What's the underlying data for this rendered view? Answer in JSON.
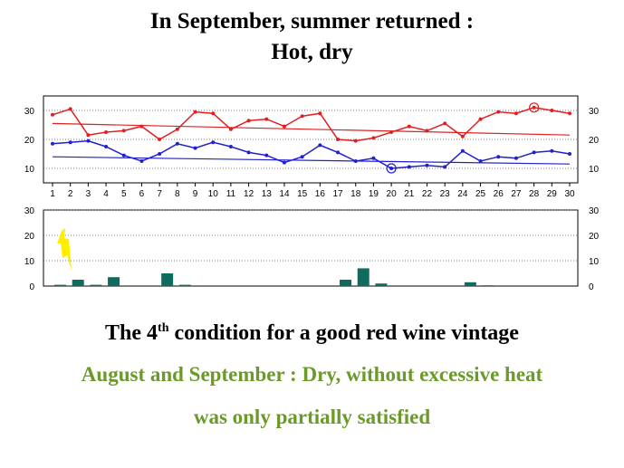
{
  "slide": {
    "title_line1": "In September, summer returned :",
    "title_line2": "Hot, dry",
    "caption_pre": "The 4",
    "caption_sup": "th",
    "caption_post": " condition for a good red wine vintage",
    "caption_line2": "August and September  : Dry, without excessive heat",
    "caption_line3": "was only partially satisfied",
    "caption_color": "#6b9a2a"
  },
  "chart_data": {
    "type": "line",
    "x": [
      1,
      2,
      3,
      4,
      5,
      6,
      7,
      8,
      9,
      10,
      11,
      12,
      13,
      14,
      15,
      16,
      17,
      18,
      19,
      20,
      21,
      22,
      23,
      24,
      25,
      26,
      27,
      28,
      29,
      30
    ],
    "temperature_panel": {
      "ylim": [
        5,
        35
      ],
      "yticks": [
        10,
        20,
        30
      ],
      "series": [
        {
          "color": "#e02020",
          "values": [
            28.5,
            30.5,
            21.5,
            22.5,
            23,
            24.5,
            20,
            23.5,
            29.5,
            29,
            23.5,
            26.5,
            27,
            24.5,
            28,
            29,
            20,
            19.5,
            20.5,
            22.5,
            24.5,
            23,
            25.5,
            21,
            27,
            29.5,
            29,
            31,
            30,
            29
          ]
        },
        {
          "color": "#2020d0",
          "values": [
            18.5,
            19,
            19.5,
            17.5,
            14.5,
            12.5,
            15,
            18.5,
            17,
            19,
            17.5,
            15.5,
            14.5,
            12,
            14,
            18,
            15.5,
            12.5,
            13.5,
            10,
            10.5,
            11,
            10.5,
            16,
            12.5,
            14,
            13.5,
            15.5,
            16,
            15
          ]
        }
      ],
      "trends": [
        {
          "color": "#e02020",
          "start": 25.5,
          "end": 21.5
        },
        {
          "color": "#2020d0",
          "start": 14,
          "end": 11.5
        }
      ],
      "highlights": [
        {
          "color": "#e02020",
          "x": 28,
          "y": 31
        },
        {
          "color": "#2020d0",
          "x": 20,
          "y": 10
        }
      ]
    },
    "rain_panel": {
      "ylim": [
        0,
        30
      ],
      "yticks": [
        0,
        10,
        20,
        30
      ],
      "bar_color": "#0f6b5e",
      "values": [
        0.5,
        2.5,
        0.5,
        3.5,
        0,
        0,
        5,
        0.5,
        0,
        0,
        0,
        0,
        0,
        0,
        0,
        0,
        2.5,
        7,
        1,
        0,
        0,
        0,
        0,
        1.5,
        0.3,
        0,
        0,
        0,
        0,
        0
      ]
    },
    "lightning_icon": {
      "name": "lightning-icon",
      "color": "#ffee00"
    }
  }
}
